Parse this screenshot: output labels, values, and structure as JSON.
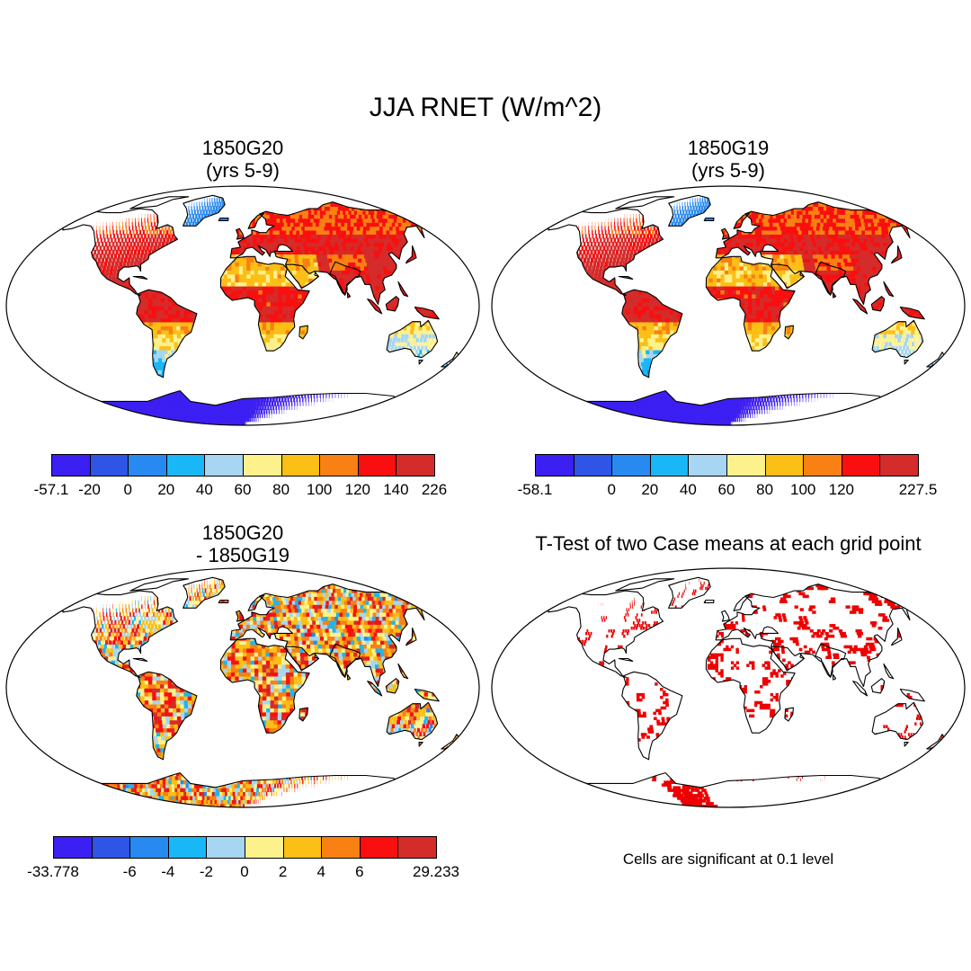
{
  "figure": {
    "title": "JJA RNET (W/m^2)"
  },
  "palette": [
    "#3c1ff2",
    "#2e55e6",
    "#2889f0",
    "#19b7f5",
    "#a6d6f1",
    "#fdf18c",
    "#fbbf16",
    "#f98012",
    "#f90f0f",
    "#d42b2b"
  ],
  "panels": [
    {
      "id": "case1",
      "title_line1": "1850G20",
      "title_line2": "(yrs 5-9)",
      "kind": "rnet",
      "colorbar": {
        "labels": [
          "-57.1",
          "-20",
          "0",
          "20",
          "40",
          "60",
          "80",
          "100",
          "120",
          "140",
          "226"
        ]
      }
    },
    {
      "id": "case2",
      "title_line1": "1850G19",
      "title_line2": "(yrs 5-9)",
      "kind": "rnet",
      "colorbar": {
        "labels": [
          "-58.1",
          "",
          "0",
          "20",
          "40",
          "60",
          "80",
          "100",
          "120",
          "",
          "227.5"
        ]
      }
    },
    {
      "id": "diff",
      "title_line1": "1850G20",
      "title_line2": "- 1850G19",
      "kind": "diff",
      "colorbar": {
        "labels": [
          "-33.778",
          "",
          "-6",
          "-4",
          "-2",
          "0",
          "2",
          "4",
          "6",
          "",
          "29.233"
        ]
      }
    },
    {
      "id": "ttest",
      "title_line1": "T-Test of two Case means at each grid point",
      "kind": "ttest",
      "note": "Cells are significant at 0.1 level"
    }
  ]
}
